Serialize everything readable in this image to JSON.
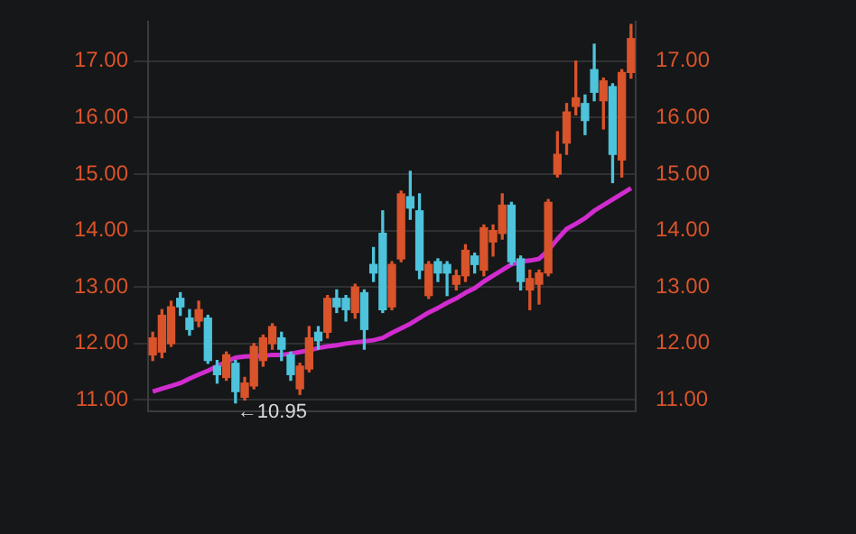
{
  "chart_data": {
    "type": "candlestick",
    "categories": [
      null,
      null,
      null,
      null,
      null,
      null,
      null,
      null,
      null,
      null,
      null,
      null,
      null,
      null,
      null,
      null,
      null,
      null,
      null,
      null,
      null,
      null,
      null,
      null,
      null,
      null,
      null,
      null,
      null,
      null,
      null,
      null,
      null,
      null,
      null,
      null,
      null,
      null,
      null,
      null,
      null,
      null,
      null,
      null,
      null,
      null,
      null,
      null,
      null,
      null,
      null,
      null,
      null
    ],
    "ohlc": [
      [
        11.8,
        12.2,
        11.7,
        12.1
      ],
      [
        11.85,
        12.6,
        11.75,
        12.5
      ],
      [
        12.0,
        12.75,
        11.95,
        12.65
      ],
      [
        12.8,
        12.9,
        12.5,
        12.65
      ],
      [
        12.45,
        12.6,
        12.15,
        12.25
      ],
      [
        12.4,
        12.75,
        12.3,
        12.6
      ],
      [
        12.45,
        12.5,
        11.65,
        11.7
      ],
      [
        11.6,
        11.7,
        11.3,
        11.45
      ],
      [
        11.4,
        11.85,
        11.35,
        11.8
      ],
      [
        11.65,
        11.7,
        10.95,
        11.15
      ],
      [
        11.05,
        11.4,
        11.0,
        11.3
      ],
      [
        11.25,
        12.0,
        11.2,
        11.95
      ],
      [
        11.7,
        12.15,
        11.6,
        12.1
      ],
      [
        12.0,
        12.35,
        11.9,
        12.3
      ],
      [
        12.1,
        12.2,
        11.7,
        11.9
      ],
      [
        11.8,
        11.85,
        11.35,
        11.45
      ],
      [
        11.2,
        11.65,
        11.1,
        11.6
      ],
      [
        11.55,
        12.3,
        11.5,
        12.1
      ],
      [
        12.2,
        12.3,
        11.9,
        12.05
      ],
      [
        12.2,
        12.85,
        12.1,
        12.8
      ],
      [
        12.8,
        12.95,
        12.55,
        12.65
      ],
      [
        12.8,
        12.85,
        12.4,
        12.6
      ],
      [
        12.55,
        13.05,
        12.45,
        13.0
      ],
      [
        12.9,
        12.95,
        11.9,
        12.25
      ],
      [
        13.4,
        13.7,
        13.1,
        13.25
      ],
      [
        13.95,
        14.35,
        12.55,
        12.6
      ],
      [
        12.65,
        13.45,
        12.6,
        13.4
      ],
      [
        13.5,
        14.7,
        13.45,
        14.65
      ],
      [
        14.6,
        15.05,
        14.2,
        14.4
      ],
      [
        14.35,
        14.65,
        13.15,
        13.3
      ],
      [
        12.85,
        13.45,
        12.8,
        13.4
      ],
      [
        13.45,
        13.5,
        13.1,
        13.25
      ],
      [
        13.4,
        13.45,
        12.85,
        13.25
      ],
      [
        13.05,
        13.3,
        12.95,
        13.2
      ],
      [
        13.2,
        13.75,
        13.1,
        13.65
      ],
      [
        13.55,
        13.6,
        13.25,
        13.4
      ],
      [
        13.3,
        14.1,
        13.2,
        14.05
      ],
      [
        13.8,
        14.1,
        13.55,
        14.0
      ],
      [
        13.95,
        14.65,
        13.85,
        14.45
      ],
      [
        14.45,
        14.5,
        13.4,
        13.45
      ],
      [
        13.5,
        13.55,
        12.95,
        13.1
      ],
      [
        12.95,
        13.3,
        12.6,
        13.15
      ],
      [
        13.05,
        13.3,
        12.7,
        13.25
      ],
      [
        13.25,
        14.55,
        13.2,
        14.5
      ],
      [
        15.0,
        15.75,
        14.95,
        15.35
      ],
      [
        15.55,
        16.25,
        15.35,
        16.1
      ],
      [
        16.2,
        17.0,
        16.05,
        16.35
      ],
      [
        16.25,
        16.4,
        15.7,
        15.95
      ],
      [
        16.85,
        17.3,
        16.3,
        16.45
      ],
      [
        16.3,
        16.7,
        15.8,
        16.65
      ],
      [
        16.55,
        16.6,
        14.85,
        15.35
      ],
      [
        15.25,
        16.85,
        14.95,
        16.8
      ],
      [
        16.8,
        17.65,
        16.7,
        17.4
      ]
    ],
    "colors": [
      "#d9532b",
      "#d9532b",
      "#d9532b",
      "#4ec3dc",
      "#4ec3dc",
      "#d9532b",
      "#4ec3dc",
      "#4ec3dc",
      "#d9532b",
      "#4ec3dc",
      "#d9532b",
      "#d9532b",
      "#d9532b",
      "#d9532b",
      "#4ec3dc",
      "#4ec3dc",
      "#d9532b",
      "#d9532b",
      "#4ec3dc",
      "#d9532b",
      "#4ec3dc",
      "#4ec3dc",
      "#d9532b",
      "#4ec3dc",
      "#4ec3dc",
      "#4ec3dc",
      "#d9532b",
      "#d9532b",
      "#4ec3dc",
      "#4ec3dc",
      "#d9532b",
      "#4ec3dc",
      "#4ec3dc",
      "#d9532b",
      "#d9532b",
      "#4ec3dc",
      "#d9532b",
      "#d9532b",
      "#d9532b",
      "#4ec3dc",
      "#4ec3dc",
      "#d9532b",
      "#d9532b",
      "#d9532b",
      "#d9532b",
      "#d9532b",
      "#d9532b",
      "#4ec3dc",
      "#4ec3dc",
      "#d9532b",
      "#4ec3dc",
      "#d9532b",
      "#d9532b"
    ],
    "series": [
      {
        "type": "line",
        "color": "#d02ccf",
        "values": [
          11.15,
          11.2,
          11.25,
          11.3,
          11.38,
          11.45,
          11.52,
          11.6,
          11.68,
          11.75,
          11.77,
          11.78,
          11.78,
          11.8,
          11.8,
          11.82,
          11.85,
          11.88,
          11.92,
          11.95,
          11.97,
          12.0,
          12.02,
          12.04,
          12.06,
          12.1,
          12.19,
          12.27,
          12.35,
          12.45,
          12.55,
          12.63,
          12.72,
          12.8,
          12.9,
          12.98,
          13.1,
          13.2,
          13.3,
          13.4,
          13.45,
          13.47,
          13.5,
          13.65,
          13.85,
          14.03,
          14.12,
          14.22,
          14.35,
          14.45,
          14.55,
          14.65,
          14.75
        ]
      }
    ],
    "ylim": [
      10.8,
      17.7
    ],
    "yticks": [
      {
        "value": 11,
        "label": "11.00"
      },
      {
        "value": 12,
        "label": "12.00"
      },
      {
        "value": 13,
        "label": "13.00"
      },
      {
        "value": 14,
        "label": "14.00"
      },
      {
        "value": 15,
        "label": "15.00"
      },
      {
        "value": 16,
        "label": "16.00"
      },
      {
        "value": 17,
        "label": "17.00"
      }
    ],
    "y2lim": [
      10.8,
      17.7
    ],
    "y2ticks": [
      {
        "value": 11,
        "label": "11.00"
      },
      {
        "value": 12,
        "label": "12.00"
      },
      {
        "value": 13,
        "label": "13.00"
      },
      {
        "value": 14,
        "label": "14.00"
      },
      {
        "value": 15,
        "label": "15.00"
      },
      {
        "value": 16,
        "label": "16.00"
      },
      {
        "value": 17,
        "label": "17.00"
      }
    ],
    "tick_labels": "y",
    "grid": "y",
    "annotations": [
      "←10.95"
    ]
  }
}
